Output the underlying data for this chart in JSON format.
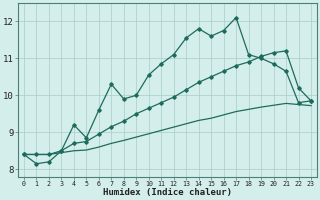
{
  "x": [
    0,
    1,
    2,
    3,
    4,
    5,
    6,
    7,
    8,
    9,
    10,
    11,
    12,
    13,
    14,
    15,
    16,
    17,
    18,
    19,
    20,
    21,
    22,
    23
  ],
  "main_y": [
    8.4,
    8.15,
    8.2,
    8.5,
    9.2,
    8.85,
    9.6,
    10.3,
    9.9,
    10.0,
    10.55,
    10.85,
    11.1,
    11.55,
    11.8,
    11.6,
    11.75,
    12.1,
    11.1,
    11.0,
    10.85,
    10.65,
    9.8,
    9.85
  ],
  "line2_y": [
    8.4,
    8.4,
    8.4,
    8.5,
    8.7,
    8.75,
    8.95,
    9.15,
    9.3,
    9.5,
    9.65,
    9.8,
    9.95,
    10.15,
    10.35,
    10.5,
    10.65,
    10.8,
    10.9,
    11.05,
    11.15,
    11.2,
    10.2,
    9.85
  ],
  "line3_y": [
    8.4,
    8.4,
    8.4,
    8.45,
    8.5,
    8.52,
    8.6,
    8.7,
    8.78,
    8.87,
    8.96,
    9.05,
    9.14,
    9.23,
    9.32,
    9.38,
    9.47,
    9.56,
    9.62,
    9.68,
    9.73,
    9.78,
    9.75,
    9.72
  ],
  "bg_color": "#d4eeeb",
  "line_color": "#1e6b5e",
  "grid_color": "#aaccc7",
  "xlabel": "Humidex (Indice chaleur)",
  "ylabel_ticks": [
    8,
    9,
    10,
    11,
    12
  ],
  "xlim": [
    -0.5,
    23.5
  ],
  "ylim": [
    7.8,
    12.5
  ],
  "title": ""
}
